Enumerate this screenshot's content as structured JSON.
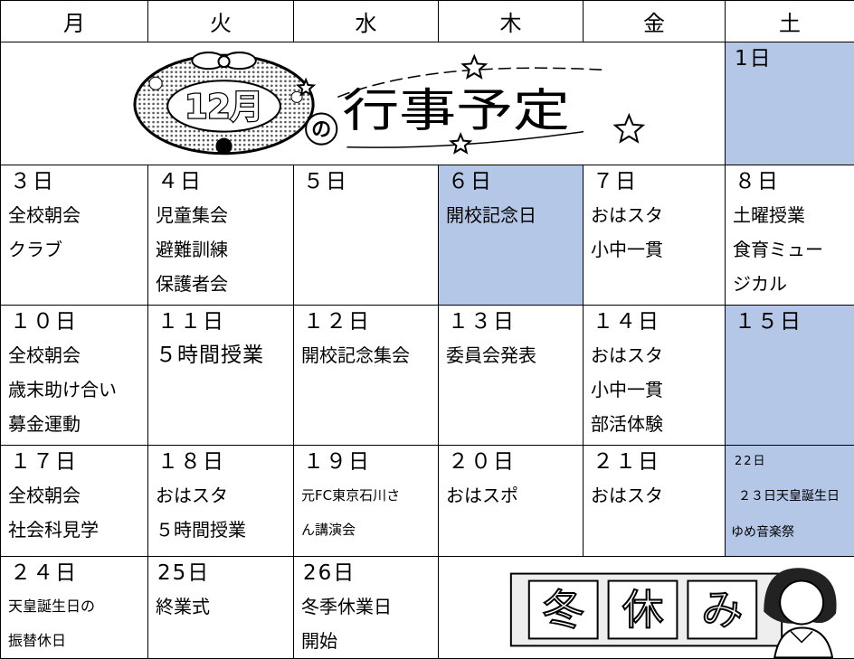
{
  "header": {
    "days": [
      "月",
      "火",
      "水",
      "木",
      "金",
      "土"
    ]
  },
  "weeks": [
    [
      {
        "art": [
          "12月",
          "の",
          "行事予定"
        ]
      },
      {
        "date": "1日",
        "highlighted": true,
        "events": []
      }
    ],
    [
      {
        "date": "３日",
        "events": [
          "全校朝会",
          "クラブ"
        ]
      },
      {
        "date": "４日",
        "events": [
          "児童集会",
          "避難訓練",
          "保護者会"
        ]
      },
      {
        "date": "５日",
        "events": []
      },
      {
        "date": "６日",
        "highlighted": true,
        "events": [
          "開校記念日"
        ]
      },
      {
        "date": "７日",
        "events": [
          "おはスタ",
          "小中一貫"
        ]
      },
      {
        "date": "８日",
        "events": [
          "土曜授業",
          "食育ミュー",
          "ジカル"
        ]
      }
    ],
    [
      {
        "date": "１０日",
        "events": [
          "全校朝会",
          "歳末助け合い",
          "募金運動"
        ]
      },
      {
        "date": "１１日",
        "events": [
          "５時間授業"
        ]
      },
      {
        "date": "１２日",
        "events": [
          "開校記念集会"
        ]
      },
      {
        "date": "１３日",
        "events": [
          "委員会発表"
        ]
      },
      {
        "date": "１４日",
        "events": [
          "おはスタ",
          "小中一貫",
          "部活体験"
        ]
      },
      {
        "date": "１５日",
        "highlighted": true,
        "events": []
      }
    ],
    [
      {
        "date": "１７日",
        "events": [
          "全校朝会",
          "社会科見学"
        ]
      },
      {
        "date": "１８日",
        "events": [
          "おはスタ",
          "５時間授業"
        ]
      },
      {
        "date": "１９日",
        "events": [
          "元FC東京石川さ",
          "ん講演会"
        ]
      },
      {
        "date": "２０日",
        "events": [
          "おはスポ"
        ]
      },
      {
        "date": "２１日",
        "events": [
          "おはスタ"
        ]
      },
      {
        "date": "22日",
        "highlighted": true,
        "events": [
          "２３日天皇誕生日",
          "ゆめ音楽祭"
        ]
      }
    ],
    [
      {
        "date": "２４日",
        "events": [
          "天皇誕生日の",
          "振替休日"
        ]
      },
      {
        "date": "25日",
        "events": [
          "終業式"
        ]
      },
      {
        "date": "26日",
        "events": [
          "冬季休業日",
          "開始"
        ]
      },
      {
        "art": [
          "冬",
          "休",
          "み"
        ]
      }
    ]
  ]
}
